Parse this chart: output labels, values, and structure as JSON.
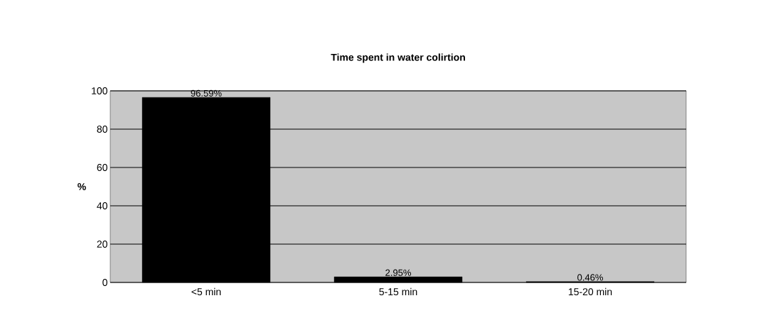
{
  "chart_data": {
    "type": "bar",
    "title": "Time spent in water colirtion",
    "ylabel": "%",
    "categories": [
      "<5 min",
      "5-15 min",
      "15-20 min"
    ],
    "values": [
      96.59,
      2.95,
      0.46
    ],
    "color": "#000000",
    "value_labels": [
      "96.59%",
      "2.95%",
      "0.46%"
    ],
    "ylim": [
      0,
      100
    ],
    "yticks": [
      0,
      20,
      40,
      60,
      80,
      100
    ],
    "grid": "y"
  }
}
